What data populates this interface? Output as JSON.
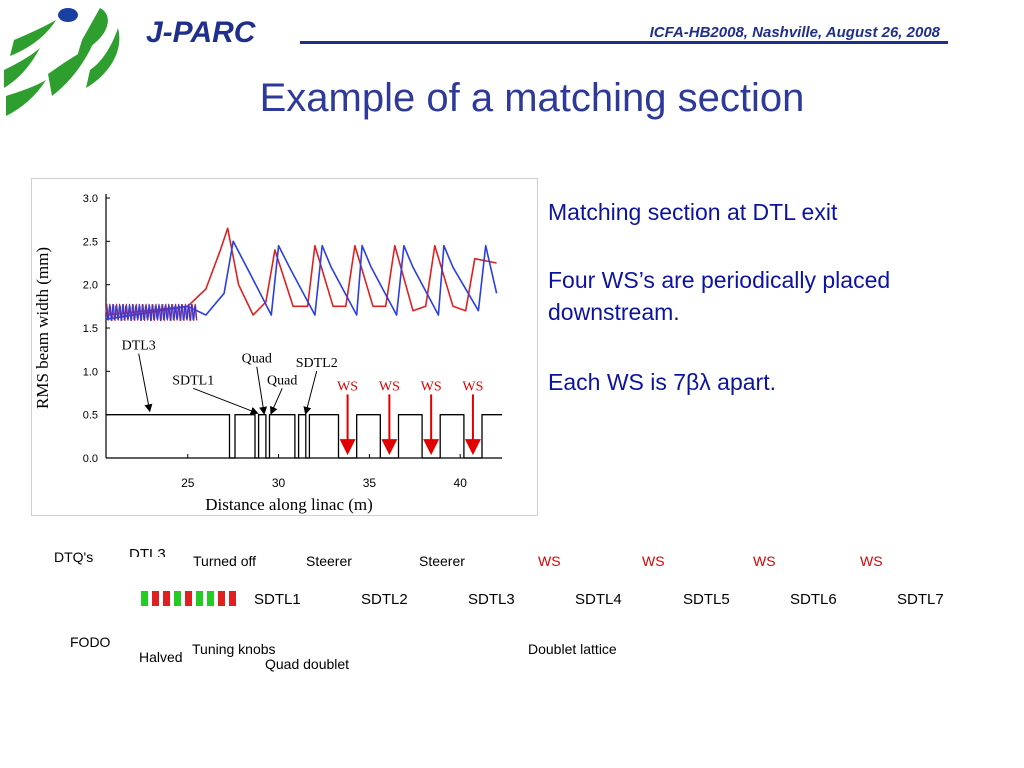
{
  "header": {
    "logo_text": "J-PARC",
    "conference": "ICFA-HB2008, Nashville, August 26, 2008"
  },
  "slide": {
    "title": "Example of a matching section",
    "bullets": [
      "Matching section at DTL exit",
      "Four WS’s are periodically placed",
      "downstream.",
      "Each WS is 7βλ apart."
    ]
  },
  "diagram": {
    "top_row": [
      "DTQ's",
      "DTL3",
      "Turned off",
      "Steerer",
      "Steerer",
      "WS",
      "WS",
      "WS",
      "WS"
    ],
    "sections": [
      "SDTL1",
      "SDTL2",
      "SDTL3",
      "SDTL4",
      "SDTL5",
      "SDTL6",
      "SDTL7"
    ],
    "bottom_row": [
      "FODO",
      "Halved",
      "Tuning knobs",
      "Quad doublet",
      "Doublet lattice"
    ],
    "quad_colors": [
      "#22cc22",
      "#e02020",
      "#e02020",
      "#22cc22",
      "#e02020",
      "#22cc22",
      "#22cc22",
      "#e02020",
      "#e02020"
    ],
    "ws_color": "#e00000"
  },
  "chart_data": {
    "type": "line",
    "xlabel": "Distance along linac (m)",
    "ylabel": "RMS beam width (mm)",
    "xlim": [
      20.5,
      42.3
    ],
    "ylim": [
      0,
      3.0
    ],
    "xticks": [
      25,
      30,
      35,
      40
    ],
    "yticks": [
      0.0,
      0.5,
      1.0,
      1.5,
      2.0,
      2.5,
      3.0
    ],
    "series": [
      {
        "color": "#e02020",
        "x": [
          20.5,
          25.0,
          26.0,
          26.8,
          27.2,
          27.8,
          28.6,
          29.3,
          29.8,
          30.8,
          31.6,
          32.0,
          33.0,
          33.7,
          34.2,
          35.2,
          35.9,
          36.4,
          37.4,
          38.1,
          38.6,
          39.6,
          40.3,
          40.8,
          42.0
        ],
        "y": [
          1.65,
          1.75,
          1.95,
          2.4,
          2.65,
          2.0,
          1.65,
          1.8,
          2.4,
          1.75,
          1.75,
          2.45,
          1.75,
          1.75,
          2.45,
          1.75,
          1.75,
          2.45,
          1.7,
          1.75,
          2.45,
          1.75,
          1.7,
          2.3,
          2.25
        ]
      },
      {
        "color": "#2a3ee6",
        "x": [
          20.5,
          25.0,
          26.0,
          27.0,
          27.5,
          28.5,
          29.6,
          30.0,
          30.6,
          32.0,
          32.4,
          32.9,
          34.3,
          34.6,
          35.1,
          36.5,
          36.9,
          37.4,
          38.8,
          39.1,
          39.6,
          41.0,
          41.4,
          42.0
        ],
        "y": [
          1.6,
          1.75,
          1.65,
          1.9,
          2.5,
          2.1,
          1.65,
          2.45,
          2.2,
          1.65,
          2.45,
          2.2,
          1.65,
          2.45,
          2.2,
          1.65,
          2.45,
          2.2,
          1.65,
          2.45,
          2.2,
          1.7,
          2.45,
          1.9
        ]
      },
      {
        "color": "#000000",
        "style": "layout",
        "x": [
          20.5,
          27.3,
          27.3,
          27.6,
          27.6,
          28.7,
          28.7,
          28.9,
          28.9,
          29.3,
          29.3,
          29.5,
          29.5,
          30.9,
          30.9,
          31.1,
          31.1,
          31.5,
          31.5,
          31.7,
          31.7,
          33.3,
          33.3,
          34.3,
          34.3,
          35.6,
          35.6,
          36.6,
          36.6,
          37.9,
          37.9,
          38.9,
          38.9,
          40.2,
          40.2,
          41.2,
          41.2,
          42.3
        ],
        "y": [
          0.5,
          0.5,
          0.0,
          0.0,
          0.5,
          0.5,
          0.0,
          0.0,
          0.5,
          0.5,
          0.0,
          0.0,
          0.5,
          0.5,
          0.0,
          0.0,
          0.5,
          0.5,
          0.0,
          0.0,
          0.5,
          0.5,
          0.0,
          0.0,
          0.5,
          0.5,
          0.0,
          0.0,
          0.5,
          0.5,
          0.0,
          0.0,
          0.5,
          0.5,
          0.0,
          0.0,
          0.5,
          0.5
        ]
      }
    ],
    "annotations": [
      {
        "text": "DTL3",
        "x": 22.3,
        "y": 1.25,
        "arrow_to": [
          22.9,
          0.55
        ]
      },
      {
        "text": "SDTL1",
        "x": 25.3,
        "y": 0.85,
        "arrow_to": [
          28.8,
          0.52
        ]
      },
      {
        "text": "Quad",
        "x": 28.8,
        "y": 1.1,
        "arrow_to": [
          29.2,
          0.52
        ]
      },
      {
        "text": "Quad",
        "x": 30.2,
        "y": 0.85,
        "arrow_to": [
          29.6,
          0.52
        ]
      },
      {
        "text": "SDTL2",
        "x": 32.1,
        "y": 1.05,
        "arrow_to": [
          31.5,
          0.52
        ]
      },
      {
        "text": "WS",
        "x": 33.8,
        "y": 0.78,
        "arrow_to": [
          33.8,
          0.08
        ],
        "color": "#e00000"
      },
      {
        "text": "WS",
        "x": 36.1,
        "y": 0.78,
        "arrow_to": [
          36.1,
          0.08
        ],
        "color": "#e00000"
      },
      {
        "text": "WS",
        "x": 38.4,
        "y": 0.78,
        "arrow_to": [
          38.4,
          0.08
        ],
        "color": "#e00000"
      },
      {
        "text": "WS",
        "x": 40.7,
        "y": 0.78,
        "arrow_to": [
          40.7,
          0.08
        ],
        "color": "#e00000"
      }
    ]
  }
}
